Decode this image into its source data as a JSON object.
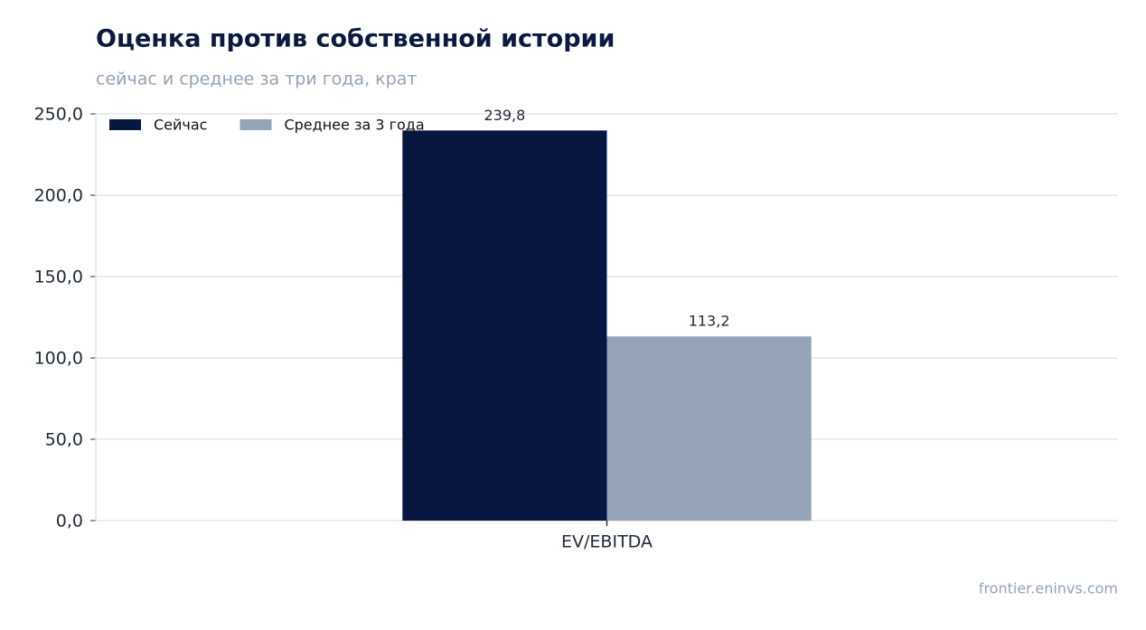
{
  "chart_data": {
    "type": "bar",
    "title": "Оценка против собственной истории",
    "subtitle": "сейчас и среднее за три года, крат",
    "source": "frontier.eninvs.com",
    "categories": [
      "EV/EBITDA"
    ],
    "series": [
      {
        "name": "Сейчас",
        "color": "#06163f",
        "values": [
          239.8
        ],
        "value_labels": [
          "239,8"
        ]
      },
      {
        "name": "Среднее за 3 года",
        "color": "#94a3b8",
        "values": [
          113.2
        ],
        "value_labels": [
          "113,2"
        ]
      }
    ],
    "ylim": [
      0,
      250
    ],
    "yticks": [
      {
        "value": 0,
        "label": "0,0"
      },
      {
        "value": 50,
        "label": "50,0"
      },
      {
        "value": 100,
        "label": "100,0"
      },
      {
        "value": 150,
        "label": "150,0"
      },
      {
        "value": 200,
        "label": "200,0"
      },
      {
        "value": 250,
        "label": "250,0"
      }
    ],
    "grid": true,
    "legend": "upper-left"
  }
}
